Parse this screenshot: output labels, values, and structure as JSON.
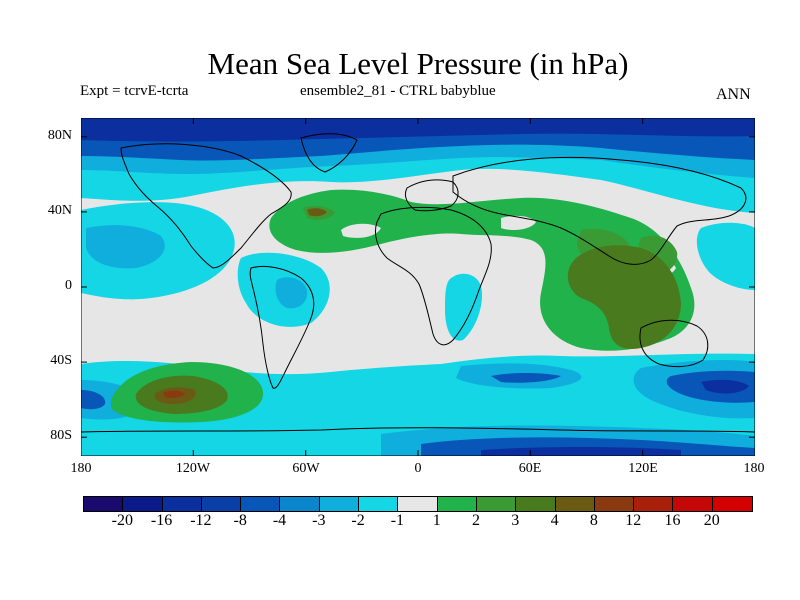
{
  "title": "Mean Sea Level Pressure (in hPa)",
  "subtitle_left": "Expt = tcrvE-tcrta",
  "subtitle_center": "ensemble2_81 - CTRL babyblue",
  "season": "ANN",
  "lat_labels": [
    "80N",
    "40N",
    "0",
    "40S",
    "80S"
  ],
  "lon_labels": [
    "180",
    "120W",
    "60W",
    "0",
    "60E",
    "120E",
    "180"
  ],
  "colorbar": {
    "labels": [
      "-20",
      "-16",
      "-12",
      "-8",
      "-4",
      "-3",
      "-2",
      "-1",
      "1",
      "2",
      "3",
      "4",
      "8",
      "12",
      "16",
      "20"
    ],
    "colors": [
      "#1a0a6e",
      "#0d1a8a",
      "#0b2f9e",
      "#0a3fa8",
      "#0856b8",
      "#0a86cc",
      "#10aedd",
      "#14d6e4",
      "#e6e6e6",
      "#22b24c",
      "#3a9a34",
      "#4a7a1e",
      "#6a5a14",
      "#8a3a10",
      "#a8200c",
      "#c40808",
      "#d40000"
    ]
  },
  "map": {
    "projection": "cylindrical-equidistant",
    "lon_range": [
      -180,
      180
    ],
    "lat_range": [
      -90,
      90
    ],
    "background_color": "#e6e6e6",
    "coastline_color": "#000000"
  }
}
